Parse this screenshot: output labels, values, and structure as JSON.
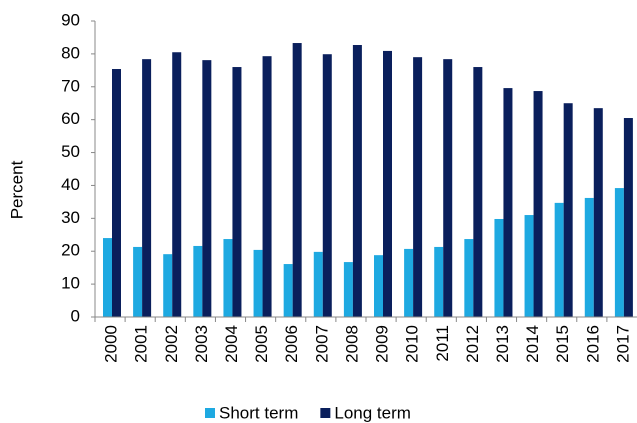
{
  "chart_data": {
    "type": "bar",
    "y_label": "Percent",
    "categories": [
      "2000",
      "2001",
      "2002",
      "2003",
      "2004",
      "2005",
      "2006",
      "2007",
      "2008",
      "2009",
      "2010",
      "2011",
      "2012",
      "2013",
      "2014",
      "2015",
      "2016",
      "2017"
    ],
    "series": [
      {
        "name": "Short term",
        "color": "#1ea9e1",
        "values": [
          24,
          21.3,
          19.1,
          21.6,
          23.7,
          20.4,
          16.1,
          19.8,
          16.7,
          18.8,
          20.7,
          21.3,
          23.7,
          29.8,
          31,
          34.7,
          36.2,
          39.2
        ]
      },
      {
        "name": "Long term",
        "color": "#0a1f5c",
        "values": [
          75.4,
          78.4,
          80.5,
          78.1,
          76,
          79.3,
          83.3,
          79.9,
          82.7,
          80.9,
          79,
          78.4,
          76,
          69.6,
          68.7,
          65,
          63.5,
          60.5
        ]
      }
    ],
    "ylim": [
      0,
      90
    ],
    "yticks": [
      0,
      10,
      20,
      30,
      40,
      50,
      60,
      70,
      80,
      90
    ],
    "legend": "bottom"
  }
}
